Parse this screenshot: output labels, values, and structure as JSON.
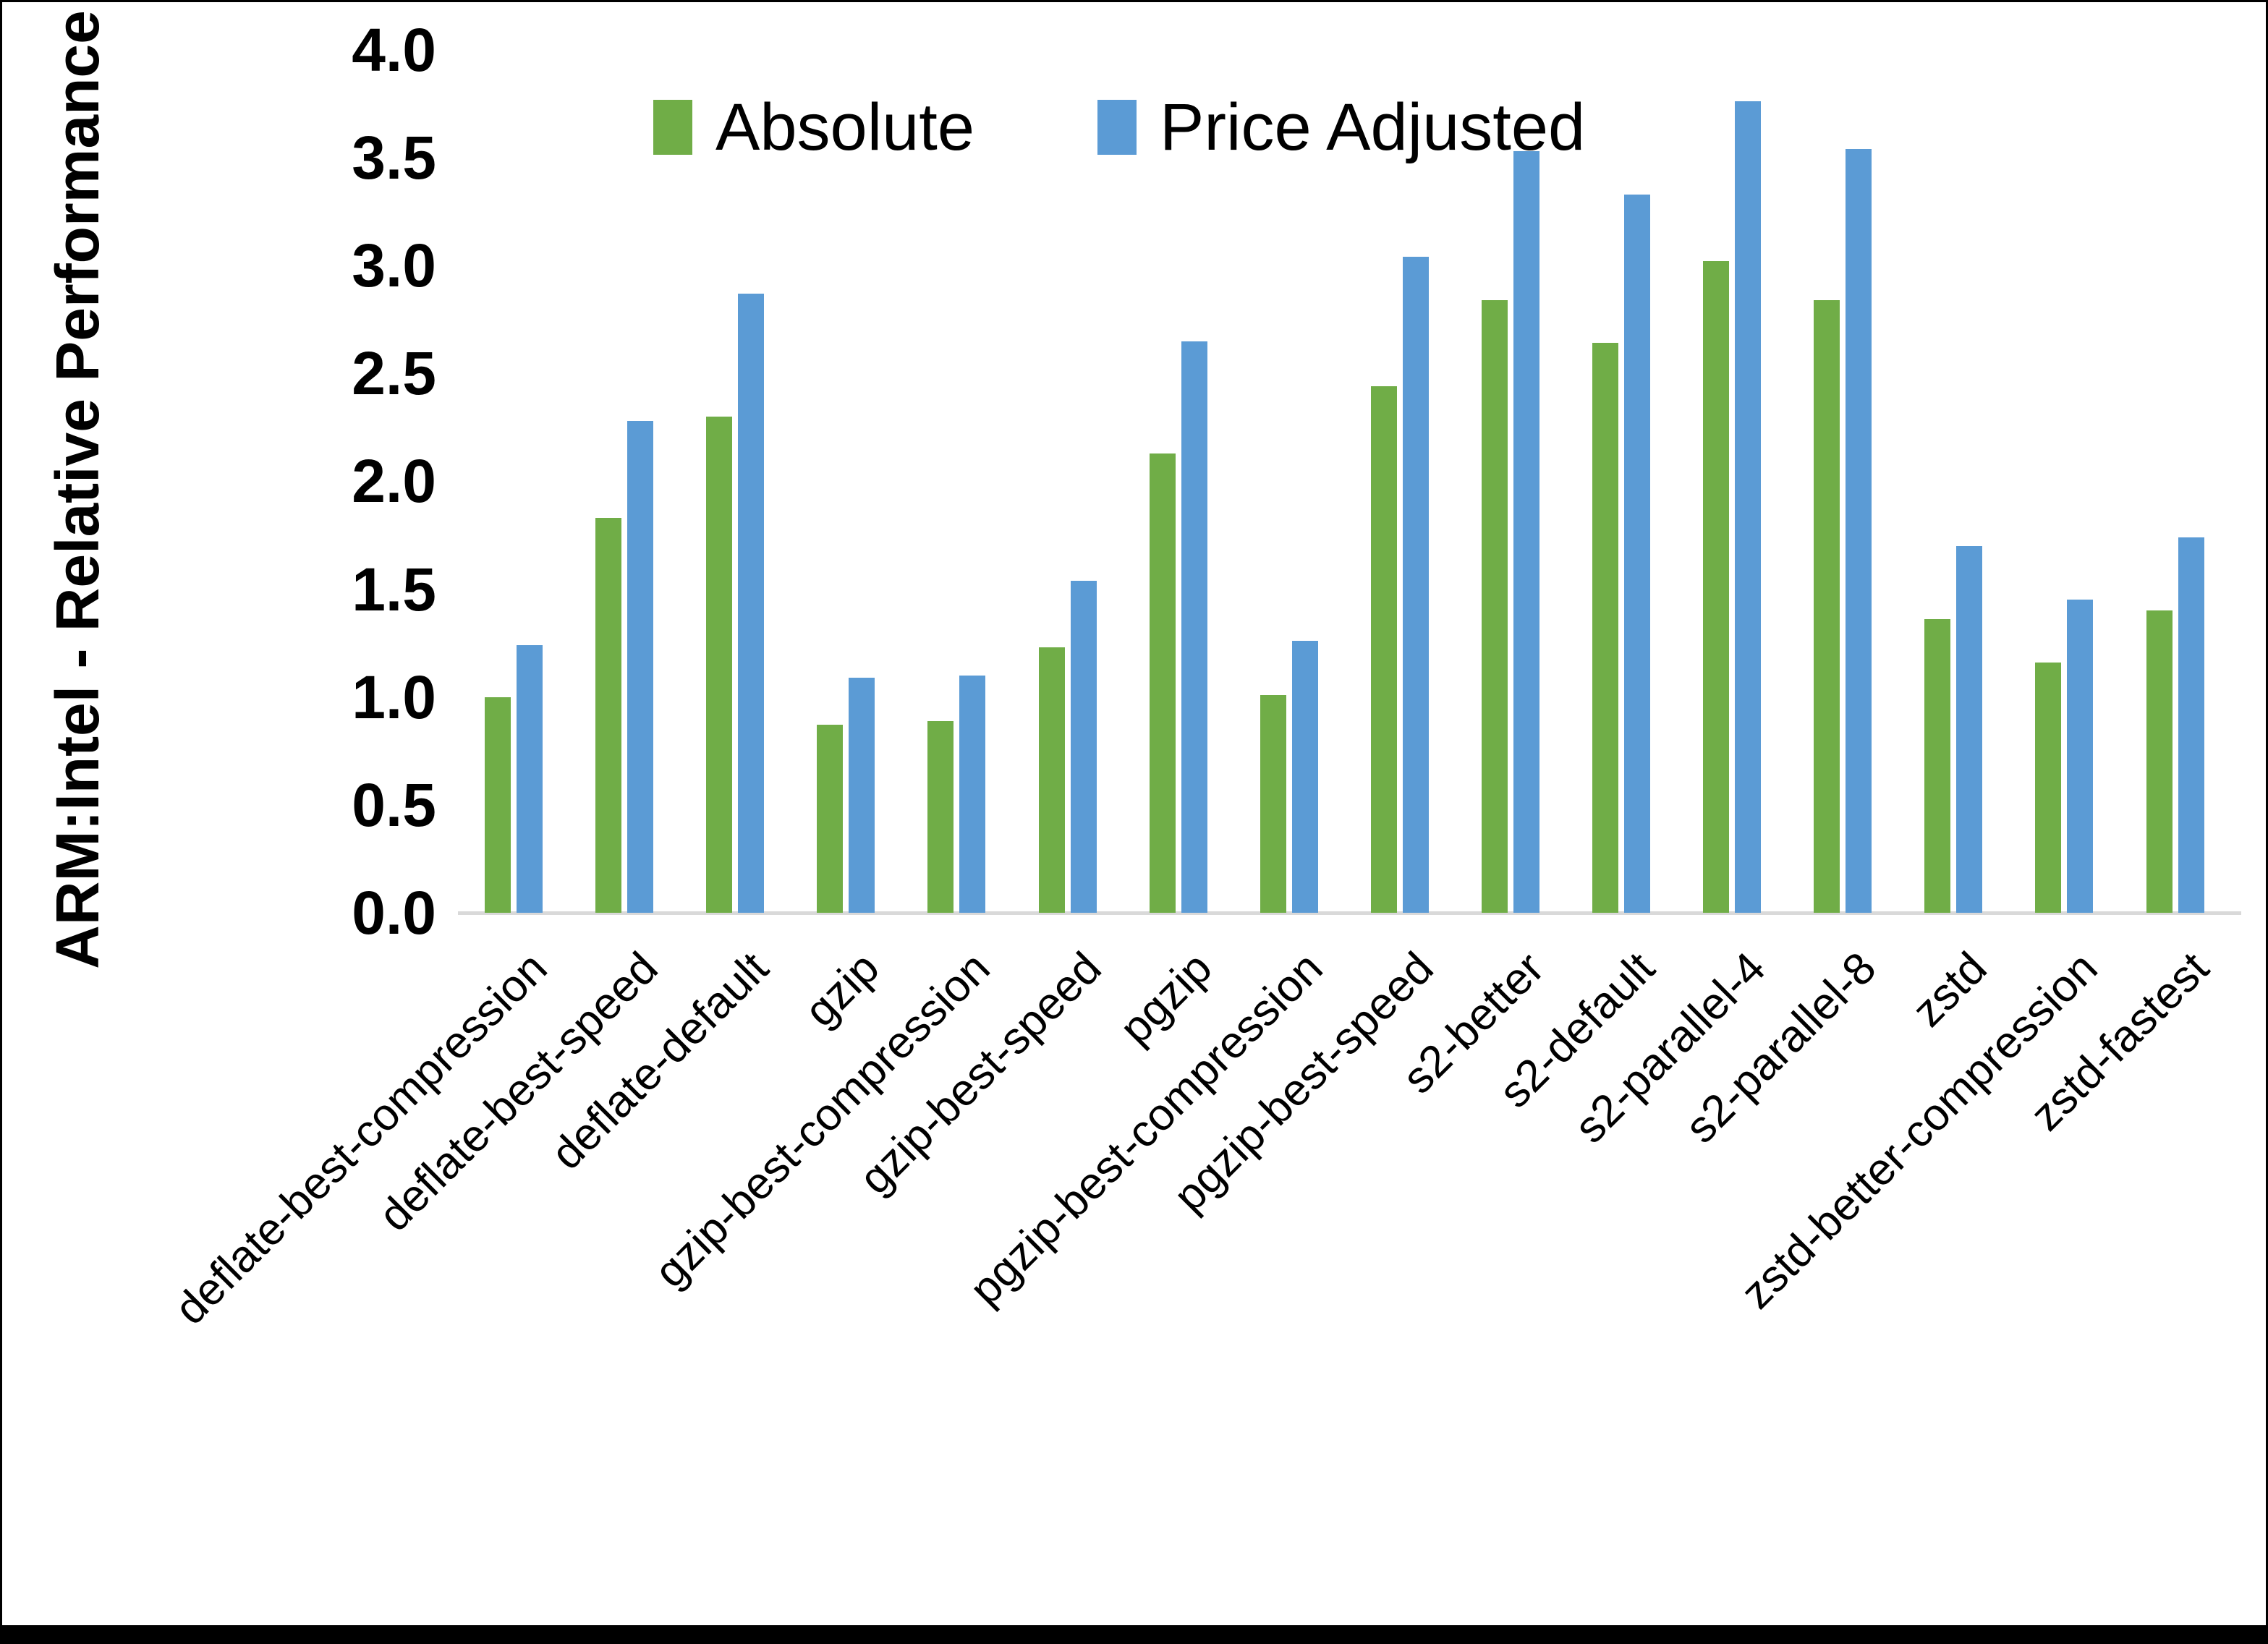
{
  "figure": {
    "background": "#ffffff",
    "frame_color": "#000000",
    "axis_line_color": "#D9D9D9"
  },
  "chart_data": {
    "type": "bar",
    "title": "",
    "xlabel": "",
    "ylabel": "ARM:Intel - Relative Performance",
    "ylim": [
      0.0,
      4.0
    ],
    "ytick_step": 0.5,
    "ytick_labels": [
      "0.0",
      "0.5",
      "1.0",
      "1.5",
      "2.0",
      "2.5",
      "3.0",
      "3.5",
      "4.0"
    ],
    "grid": false,
    "legend_position": "top-center",
    "categories": [
      "deflate-best-compression",
      "deflate-best-speed",
      "deflate-default",
      "gzip",
      "gzip-best-compression",
      "gzip-best-speed",
      "pgzip",
      "pgzip-best-compression",
      "pgzip-best-speed",
      "s2-better",
      "s2-default",
      "s2-parallel-4",
      "s2-parallel-8",
      "zstd",
      "zstd-better-compression",
      "zstd-fastest"
    ],
    "series": [
      {
        "name": "Absolute",
        "color": "#70AD47",
        "values": [
          1.0,
          1.83,
          2.3,
          0.87,
          0.89,
          1.23,
          2.13,
          1.01,
          2.44,
          2.84,
          2.64,
          3.02,
          2.84,
          1.36,
          1.16,
          1.4
        ]
      },
      {
        "name": "Price Adjusted",
        "color": "#5B9BD5",
        "values": [
          1.24,
          2.28,
          2.87,
          1.09,
          1.1,
          1.54,
          2.65,
          1.26,
          3.04,
          3.53,
          3.33,
          3.76,
          3.54,
          1.7,
          1.45,
          1.74
        ]
      }
    ]
  }
}
